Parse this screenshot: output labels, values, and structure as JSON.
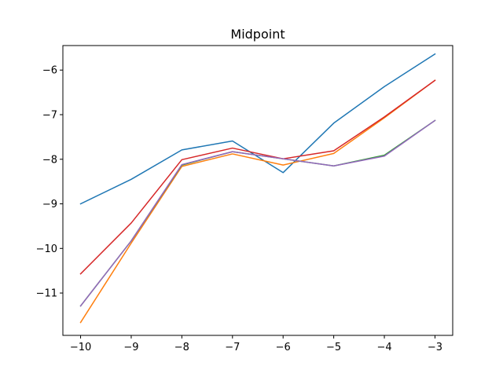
{
  "chart_data": {
    "type": "line",
    "title": "Midpoint",
    "xlabel": "",
    "ylabel": "",
    "xlim": [
      -10.35,
      -2.65
    ],
    "ylim": [
      -11.95,
      -5.45
    ],
    "grid": false,
    "x": [
      -10,
      -9,
      -8,
      -7,
      -6,
      -5,
      -4,
      -3
    ],
    "xticks": [
      -10,
      -9,
      -8,
      -7,
      -6,
      -5,
      -4,
      -3
    ],
    "xtick_labels": [
      "−10",
      "−9",
      "−8",
      "−7",
      "−6",
      "−5",
      "−4",
      "−3"
    ],
    "yticks": [
      -11,
      -10,
      -9,
      -8,
      -7,
      -6
    ],
    "ytick_labels": [
      "−11",
      "−10",
      "−9",
      "−8",
      "−7",
      "−6"
    ],
    "series": [
      {
        "color": "#1f77b4",
        "values": [
          -9.0,
          -8.45,
          -7.79,
          -7.59,
          -8.3,
          -7.19,
          -6.37,
          -5.64
        ]
      },
      {
        "color": "#ff7f0e",
        "values": [
          -11.66,
          -9.88,
          -8.16,
          -7.88,
          -8.13,
          -7.87,
          -7.07,
          -6.23
        ]
      },
      {
        "color": "#2ca02c",
        "values": [
          -11.29,
          -9.83,
          -8.13,
          -7.83,
          -7.99,
          -8.15,
          -7.91,
          -7.13
        ]
      },
      {
        "color": "#d62728",
        "values": [
          -10.57,
          -9.43,
          -8.01,
          -7.75,
          -7.99,
          -7.81,
          -7.05,
          -6.23
        ]
      },
      {
        "color": "#9467bd",
        "values": [
          -11.29,
          -9.83,
          -8.12,
          -7.83,
          -7.99,
          -8.15,
          -7.93,
          -7.13
        ]
      }
    ]
  }
}
